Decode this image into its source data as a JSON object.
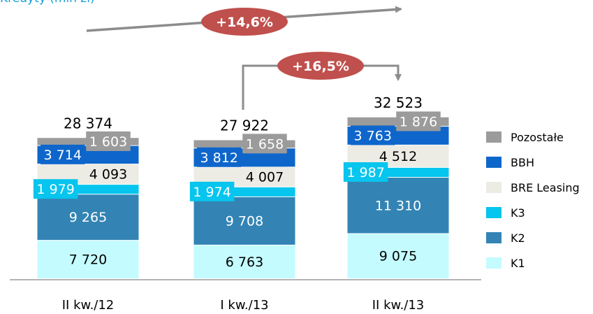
{
  "title": "Kredyty (mln zł)",
  "chart_data": {
    "type": "bar",
    "stacked": true,
    "categories": [
      "II kw./12",
      "I kw./13",
      "II kw./13"
    ],
    "totals": [
      "28 374",
      "27 922",
      "32 523"
    ],
    "series": [
      {
        "name": "K1",
        "values": [
          7720,
          6763,
          9075
        ],
        "labels": [
          "7 720",
          "6 763",
          "9 075"
        ],
        "color": "#c4fbff",
        "label_color": "#000000"
      },
      {
        "name": "K2",
        "values": [
          9265,
          9708,
          11310
        ],
        "labels": [
          "9 265",
          "9 708",
          "11 310"
        ],
        "color": "#3384b4",
        "label_color": "#ffffff"
      },
      {
        "name": "K3",
        "values": [
          1979,
          1974,
          1987
        ],
        "labels": [
          "1 979",
          "1 974",
          "1 987"
        ],
        "color": "#06c5ee",
        "label_color": "#ffffff"
      },
      {
        "name": "BRE Leasing",
        "values": [
          4093,
          4007,
          4512
        ],
        "labels": [
          "4 093",
          "4 007",
          "4 512"
        ],
        "color": "#ecebe4",
        "label_color": "#000000"
      },
      {
        "name": "BBH",
        "values": [
          3714,
          3812,
          3763
        ],
        "labels": [
          "3 714",
          "3 812",
          "3 763"
        ],
        "color": "#0e66cb",
        "label_color": "#ffffff"
      },
      {
        "name": "Pozostałe",
        "values": [
          1603,
          1658,
          1876
        ],
        "labels": [
          "1 603",
          "1 658",
          "1 876"
        ],
        "color": "#9b9b9b",
        "label_color": "#ffffff"
      }
    ],
    "legend_order": [
      "Pozostałe",
      "BBH",
      "BRE Leasing",
      "K3",
      "K2",
      "K1"
    ],
    "legend_position": "right",
    "annotations": [
      {
        "text": "+14,6%",
        "from": "II kw./12",
        "to": "II kw./13",
        "color": "#c0504d"
      },
      {
        "text": "+16,5%",
        "from": "I kw./13",
        "to": "II kw./13",
        "color": "#c0504d"
      }
    ]
  }
}
